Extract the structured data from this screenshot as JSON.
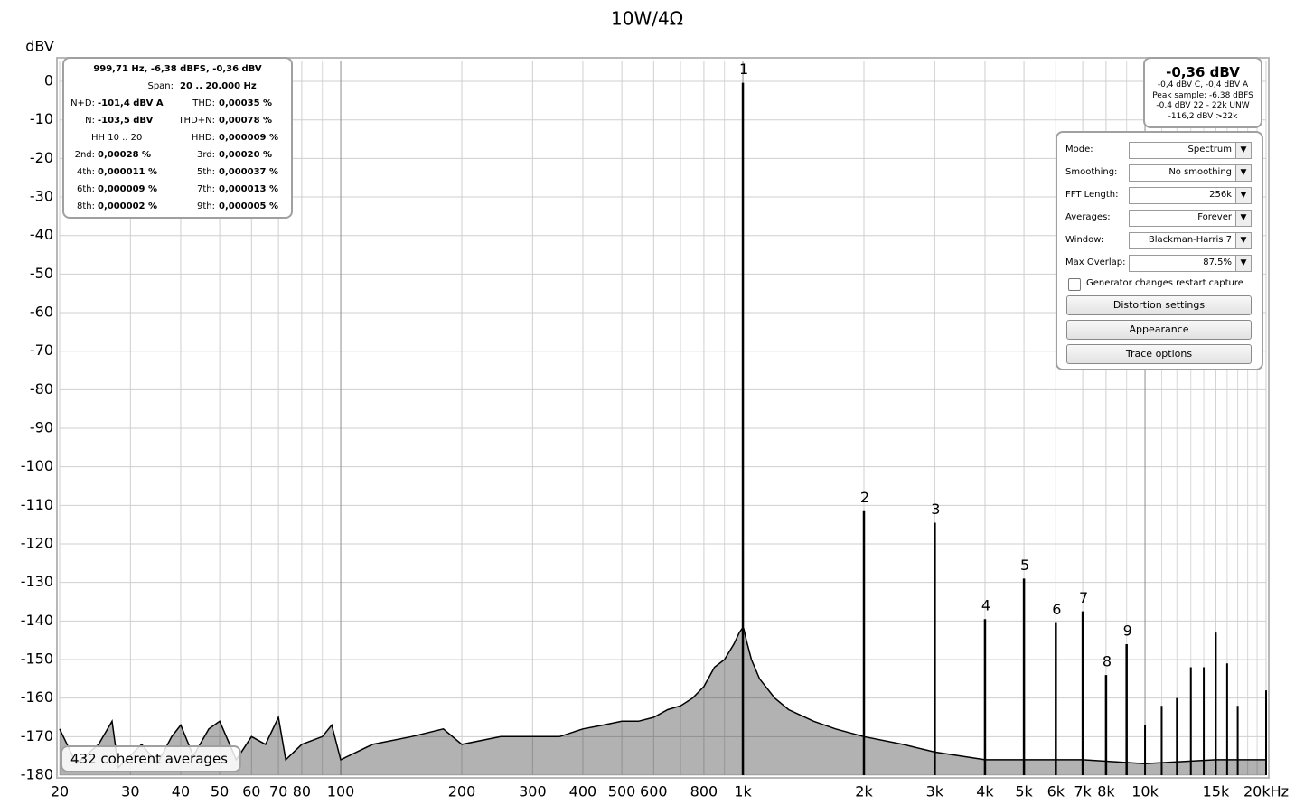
{
  "chart_data": {
    "type": "spectrum",
    "title": "10W/4Ω",
    "y_label": "dBV",
    "xscale": "log",
    "xlim": [
      20,
      20000
    ],
    "ylim": [
      -180,
      5.4
    ],
    "xticks": [
      20,
      30,
      40,
      50,
      60,
      70,
      80,
      100,
      200,
      300,
      400,
      500,
      600,
      800,
      {
        "value": 1000,
        "label": "1k"
      },
      {
        "value": 2000,
        "label": "2k"
      },
      {
        "value": 3000,
        "label": "3k"
      },
      {
        "value": 4000,
        "label": "4k"
      },
      {
        "value": 5000,
        "label": "5k"
      },
      {
        "value": 6000,
        "label": "6k"
      },
      {
        "value": 7000,
        "label": "7k"
      },
      {
        "value": 8000,
        "label": "8k"
      },
      {
        "value": 10000,
        "label": "10k"
      },
      {
        "value": 15000,
        "label": "15k"
      },
      {
        "value": 20000,
        "label": "20kHz"
      }
    ],
    "xgrid_minor": [
      90,
      700,
      900,
      9000,
      11000,
      12000,
      13000,
      14000,
      16000,
      17000,
      18000,
      19000
    ],
    "yticks": [
      0,
      -10,
      -20,
      -30,
      -40,
      -50,
      -60,
      -70,
      -80,
      -90,
      -100,
      -110,
      -120,
      -130,
      -140,
      -150,
      -160,
      -170,
      -180
    ],
    "grid": true,
    "noise": {
      "color": "#000000",
      "x": [
        20,
        22,
        25,
        27,
        28,
        32,
        35,
        38,
        40,
        43,
        47,
        50,
        55,
        60,
        65,
        70,
        73,
        80,
        90,
        95,
        100,
        120,
        150,
        180,
        200,
        250,
        300,
        350,
        400,
        450,
        500,
        550,
        600,
        650,
        700,
        750,
        800,
        850,
        900,
        950,
        980,
        995,
        1005,
        1020,
        1050,
        1100,
        1200,
        1300,
        1500,
        1700,
        2000,
        2500,
        3000,
        4000,
        5000,
        7000,
        10000,
        15000,
        20000
      ],
      "values": [
        -168,
        -177,
        -172,
        -166,
        -178,
        -172,
        -177,
        -170,
        -167,
        -175,
        -168,
        -166,
        -176,
        -170,
        -172,
        -165,
        -176,
        -172,
        -170,
        -167,
        -176,
        -172,
        -170,
        -168,
        -172,
        -170,
        -170,
        -170,
        -168,
        -167,
        -166,
        -166,
        -165,
        -163,
        -162,
        -160,
        -157,
        -152,
        -150,
        -146,
        -143,
        -142,
        -142,
        -145,
        -150,
        -155,
        -160,
        -163,
        -166,
        -168,
        -170,
        -172,
        -174,
        -176,
        -176,
        -176,
        -177,
        -176,
        -176
      ]
    },
    "harmonics": {
      "color": "#000000",
      "labels": [
        "1",
        "2",
        "3",
        "4",
        "5",
        "6",
        "7",
        "8",
        "9"
      ],
      "x": [
        1000,
        2000,
        3000,
        4000,
        5000,
        6000,
        7000,
        8000,
        9000
      ],
      "values": [
        -0.36,
        -111.5,
        -114.5,
        -139.5,
        -129,
        -140.5,
        -137.5,
        -154,
        -146
      ]
    },
    "spurs": {
      "color": "#000000",
      "x": [
        10000,
        11000,
        12000,
        13000,
        14000,
        15000,
        16000,
        17000,
        20000
      ],
      "values": [
        -167,
        -162,
        -160,
        -152,
        -152,
        -143,
        -151,
        -162,
        -158
      ]
    }
  },
  "stats": {
    "header": "999,71 Hz, -6,38 dBFS, -0,36 dBV",
    "span_label": "Span:",
    "span_value": "20 .. 20.000 Hz",
    "rows": [
      [
        "N+D:",
        "-101,4 dBV A",
        "THD:",
        "0,00035 %"
      ],
      [
        "N:",
        "-103,5 dBV",
        "THD+N:",
        "0,00078 %"
      ],
      [
        "HH 10 .. 20",
        "HHD:",
        "0,000009 %"
      ],
      [
        "2nd:",
        "0,00028 %",
        "3rd:",
        "0,00020 %"
      ],
      [
        "4th:",
        "0,000011 %",
        "5th:",
        "0,000037 %"
      ],
      [
        "6th:",
        "0,000009 %",
        "7th:",
        "0,000013 %"
      ],
      [
        "8th:",
        "0,000002 %",
        "9th:",
        "0,000005 %"
      ]
    ]
  },
  "level": {
    "main": "-0,36 dBV",
    "lines": [
      "-0,4 dBV C, -0,4 dBV A",
      "Peak sample: -6,38 dBFS",
      "-0,4 dBV 22 - 22k UNW",
      "-116,2 dBV >22k"
    ]
  },
  "settings": {
    "fields": [
      [
        "Mode:",
        "Spectrum"
      ],
      [
        "Smoothing:",
        "No  smoothing"
      ],
      [
        "FFT Length:",
        "256k"
      ],
      [
        "Averages:",
        "Forever"
      ],
      [
        "Window:",
        "Blackman-Harris 7"
      ],
      [
        "Max Overlap:",
        "87.5%"
      ]
    ],
    "checkbox": "Generator changes restart capture",
    "buttons": [
      "Distortion settings",
      "Appearance",
      "Trace options"
    ]
  },
  "averages": "432 coherent averages"
}
